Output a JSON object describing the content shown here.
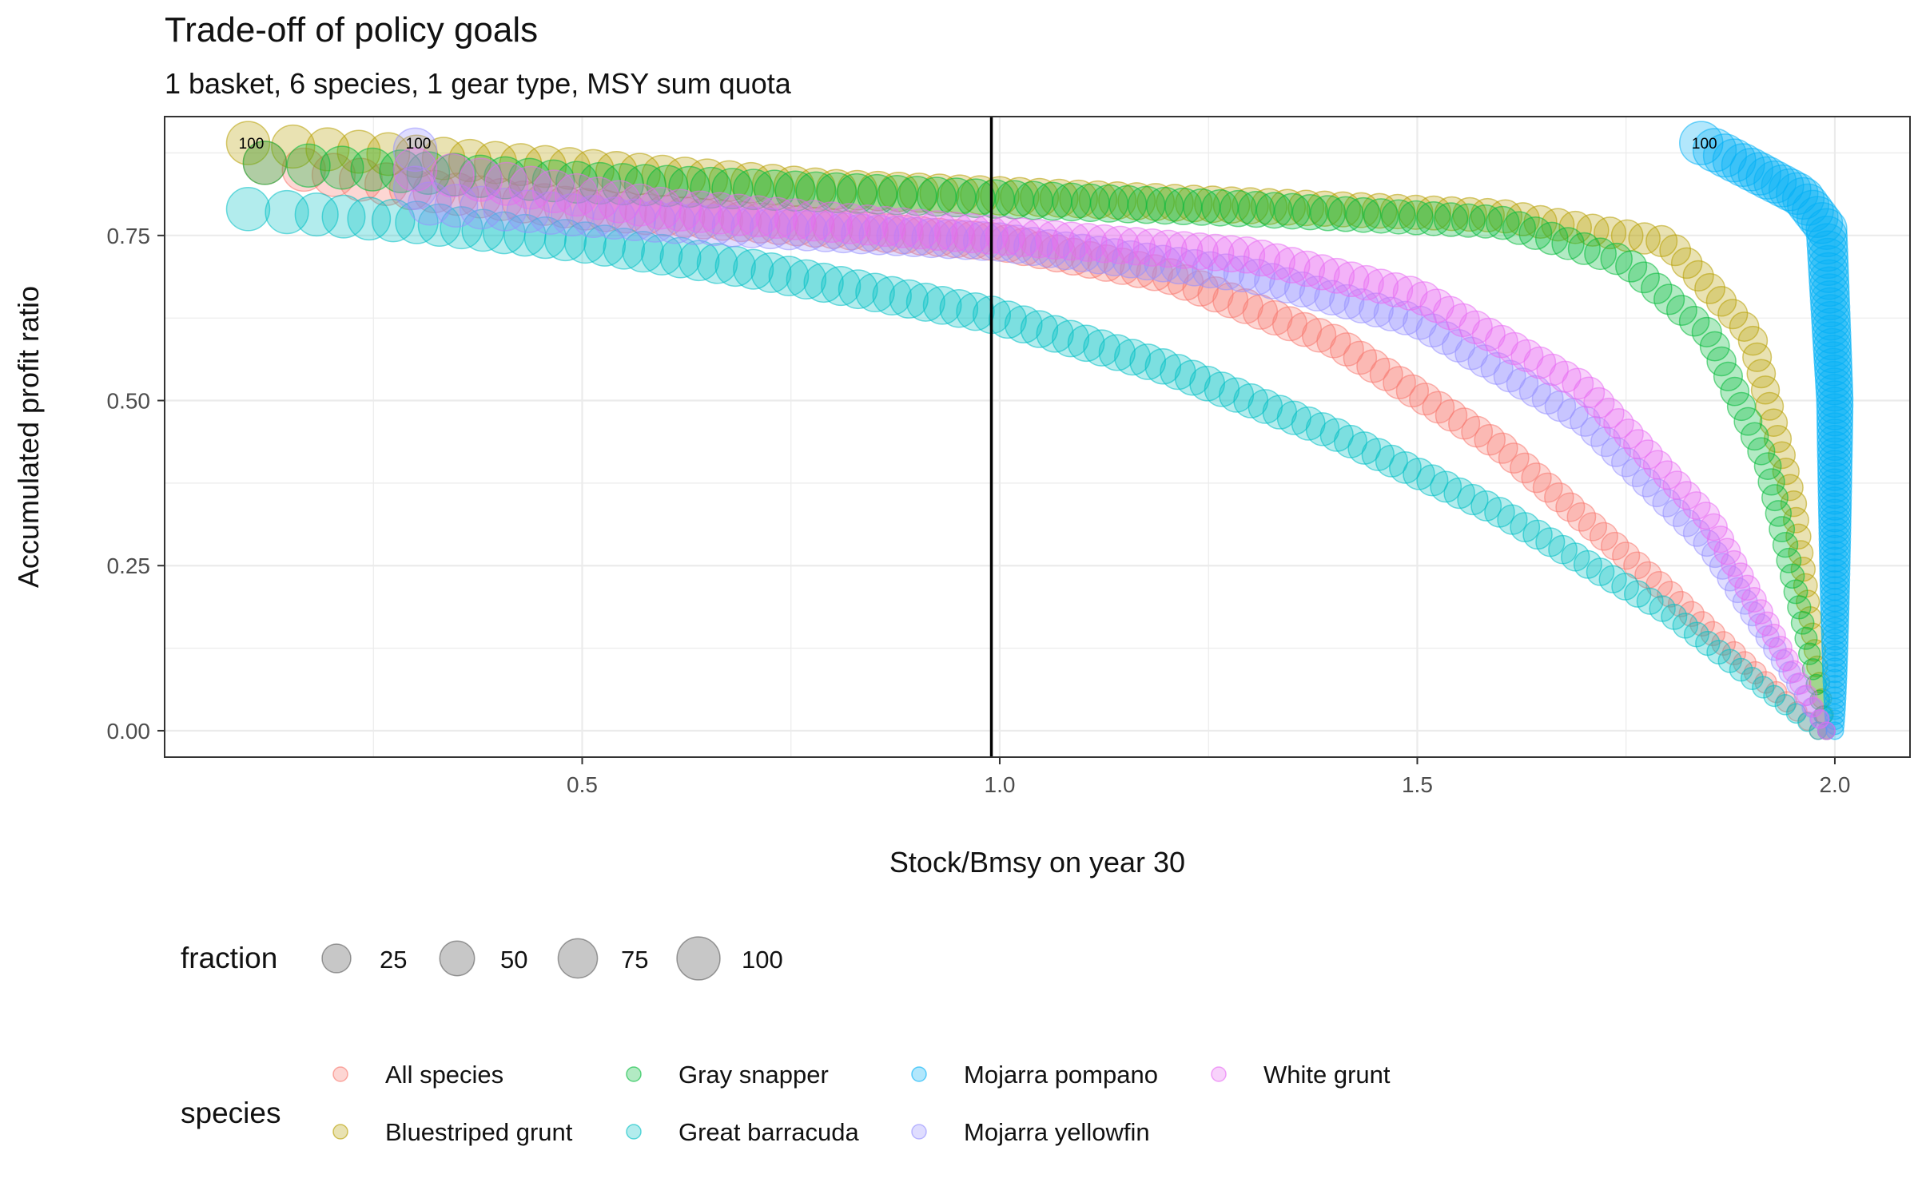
{
  "chart_data": {
    "type": "scatter",
    "title": "Trade-off of policy goals",
    "subtitle": "1 basket, 6 species, 1 gear type, MSY sum quota",
    "xlabel": "Stock/Bmsy on year 30",
    "ylabel": "Accumulated profit ratio",
    "xlim": [
      0.0,
      2.09
    ],
    "ylim": [
      -0.04,
      0.93
    ],
    "x_ticks": [
      "0.5",
      "1.0",
      "1.5",
      "2.0"
    ],
    "x_tick_values": [
      0.5,
      1.0,
      1.5,
      2.0
    ],
    "y_ticks": [
      "0.00",
      "0.25",
      "0.50",
      "0.75"
    ],
    "y_tick_values": [
      0.0,
      0.25,
      0.5,
      0.75
    ],
    "grid": true,
    "reference_line": {
      "axis": "x",
      "value": 0.99
    },
    "point_alpha": 0.3,
    "size_legend": {
      "title": "fraction",
      "values": [
        25,
        50,
        75,
        100
      ],
      "labels": [
        "25",
        "50",
        "75",
        "100"
      ]
    },
    "color_legend": {
      "title": "species",
      "position": "bottom"
    },
    "series": [
      {
        "name": "All species",
        "color": "#F8766D",
        "points_at_fraction_100": {
          "x": 0.12,
          "y": 0.86
        },
        "points_at_fraction_1": {
          "x": 1.98,
          "y": 0.0
        },
        "sample_points": [
          [
            0.12,
            0.86
          ],
          [
            0.3,
            0.82
          ],
          [
            0.5,
            0.79
          ],
          [
            0.7,
            0.77
          ],
          [
            1.0,
            0.74
          ],
          [
            1.2,
            0.69
          ],
          [
            1.4,
            0.59
          ],
          [
            1.6,
            0.43
          ],
          [
            1.8,
            0.21
          ],
          [
            1.98,
            0.0
          ]
        ]
      },
      {
        "name": "Bluestriped grunt",
        "color": "#B79F00",
        "points_at_fraction_100": {
          "x": 0.1,
          "y": 0.89
        },
        "points_at_fraction_1": {
          "x": 1.99,
          "y": 0.0
        },
        "sample_points": [
          [
            0.1,
            0.89
          ],
          [
            0.4,
            0.86
          ],
          [
            0.8,
            0.82
          ],
          [
            1.2,
            0.8
          ],
          [
            1.6,
            0.78
          ],
          [
            1.8,
            0.74
          ],
          [
            1.9,
            0.6
          ],
          [
            1.95,
            0.35
          ],
          [
            1.99,
            0.0
          ]
        ]
      },
      {
        "name": "Gray snapper",
        "color": "#00BA38",
        "points_at_fraction_100": {
          "x": 0.12,
          "y": 0.86
        },
        "points_at_fraction_1": {
          "x": 1.99,
          "y": 0.0
        },
        "sample_points": [
          [
            0.12,
            0.86
          ],
          [
            0.5,
            0.83
          ],
          [
            0.9,
            0.81
          ],
          [
            1.3,
            0.79
          ],
          [
            1.6,
            0.77
          ],
          [
            1.75,
            0.71
          ],
          [
            1.85,
            0.6
          ],
          [
            1.92,
            0.4
          ],
          [
            1.99,
            0.0
          ]
        ]
      },
      {
        "name": "Great barracuda",
        "color": "#00BFC4",
        "points_at_fraction_100": {
          "x": 0.1,
          "y": 0.79
        },
        "points_at_fraction_1": {
          "x": 1.98,
          "y": 0.0
        },
        "sample_points": [
          [
            0.1,
            0.79
          ],
          [
            0.3,
            0.77
          ],
          [
            0.5,
            0.74
          ],
          [
            0.7,
            0.7
          ],
          [
            0.99,
            0.63
          ],
          [
            1.2,
            0.55
          ],
          [
            1.4,
            0.45
          ],
          [
            1.6,
            0.33
          ],
          [
            1.8,
            0.18
          ],
          [
            1.98,
            0.0
          ]
        ]
      },
      {
        "name": "Mojarra pompano",
        "color": "#00B0F6",
        "points_at_fraction_100": {
          "x": 1.84,
          "y": 0.89
        },
        "points_at_fraction_1": {
          "x": 2.0,
          "y": 0.0
        },
        "sample_points": [
          [
            1.84,
            0.89
          ],
          [
            1.9,
            0.85
          ],
          [
            1.96,
            0.81
          ],
          [
            1.99,
            0.76
          ],
          [
            2.0,
            0.5
          ],
          [
            2.0,
            0.0
          ]
        ]
      },
      {
        "name": "Mojarra yellowfin",
        "color": "#9590FF",
        "points_at_fraction_100": {
          "x": 0.3,
          "y": 0.88
        },
        "points_at_fraction_1": {
          "x": 1.99,
          "y": 0.0
        },
        "sample_points": [
          [
            0.3,
            0.88
          ],
          [
            0.3,
            0.8
          ],
          [
            0.6,
            0.77
          ],
          [
            1.0,
            0.74
          ],
          [
            1.3,
            0.69
          ],
          [
            1.5,
            0.62
          ],
          [
            1.7,
            0.47
          ],
          [
            1.85,
            0.28
          ],
          [
            1.99,
            0.0
          ]
        ]
      },
      {
        "name": "White grunt",
        "color": "#E76BF3",
        "points_at_fraction_100": {
          "x": 0.3,
          "y": 0.85
        },
        "points_at_fraction_1": {
          "x": 1.99,
          "y": 0.0
        },
        "sample_points": [
          [
            0.3,
            0.85
          ],
          [
            0.6,
            0.79
          ],
          [
            1.0,
            0.75
          ],
          [
            1.3,
            0.72
          ],
          [
            1.5,
            0.66
          ],
          [
            1.7,
            0.52
          ],
          [
            1.85,
            0.32
          ],
          [
            1.99,
            0.0
          ]
        ]
      }
    ],
    "annotations": [
      {
        "text": "100",
        "x": 0.1,
        "y": 0.89
      },
      {
        "text": "100",
        "x": 0.3,
        "y": 0.89
      },
      {
        "text": "100",
        "x": 1.84,
        "y": 0.89
      }
    ]
  }
}
